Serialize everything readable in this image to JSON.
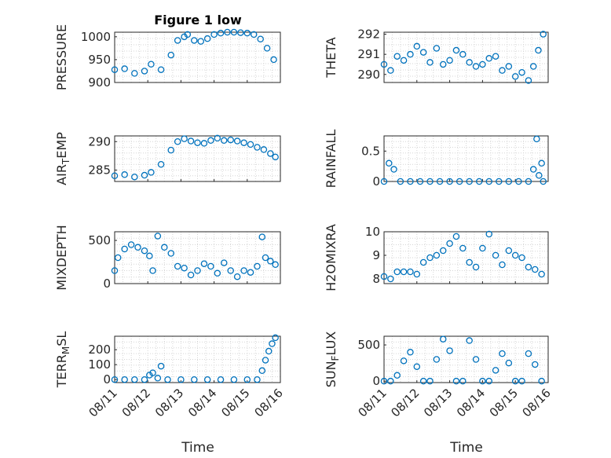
{
  "figure": {
    "title": "Figure 1 low",
    "xlabel": "Time",
    "marker_color": "#0072BD"
  },
  "chart_data": [
    {
      "type": "scatter",
      "ylabel": "PRESSURE",
      "ylim": [
        900,
        1010
      ],
      "yticks": [
        "900",
        "950",
        "1000"
      ],
      "yticks_v": [
        900,
        950,
        1000
      ],
      "xlim": [
        0,
        5
      ],
      "xticks": [
        "08/11",
        "08/12",
        "08/13",
        "08/14",
        "08/15",
        "08/16"
      ],
      "show_xticks": false,
      "grid": true,
      "x": [
        0,
        0.3,
        0.6,
        0.9,
        1.1,
        1.4,
        1.7,
        1.9,
        2.1,
        2.2,
        2.4,
        2.6,
        2.8,
        3,
        3.2,
        3.4,
        3.6,
        3.8,
        4,
        4.2,
        4.4,
        4.6,
        4.8
      ],
      "y": [
        928,
        930,
        920,
        925,
        940,
        928,
        960,
        992,
        1000,
        1005,
        992,
        990,
        996,
        1005,
        1008,
        1010,
        1010,
        1009,
        1008,
        1005,
        995,
        975,
        950
      ]
    },
    {
      "type": "scatter",
      "ylabel": "THETA",
      "ylim": [
        289.6,
        292.1
      ],
      "yticks": [
        "290",
        "291",
        "292"
      ],
      "yticks_v": [
        290,
        291,
        292
      ],
      "xlim": [
        0,
        5
      ],
      "xticks": [
        "08/11",
        "08/12",
        "08/13",
        "08/14",
        "08/15",
        "08/16"
      ],
      "show_xticks": false,
      "grid": true,
      "x": [
        0,
        0.2,
        0.4,
        0.6,
        0.8,
        1,
        1.2,
        1.4,
        1.6,
        1.8,
        2,
        2.2,
        2.4,
        2.6,
        2.8,
        3,
        3.2,
        3.4,
        3.6,
        3.8,
        4,
        4.2,
        4.4,
        4.55,
        4.7,
        4.85
      ],
      "y": [
        290.5,
        290.2,
        290.9,
        290.7,
        291,
        291.4,
        291.1,
        290.6,
        291.3,
        290.5,
        290.7,
        291.2,
        291,
        290.6,
        290.4,
        290.5,
        290.8,
        290.9,
        290.2,
        290.4,
        289.9,
        290.1,
        289.7,
        290.4,
        291.2,
        292
      ]
    },
    {
      "type": "scatter",
      "ylabel": "AIR_TEMP",
      "ylim": [
        283,
        291
      ],
      "yticks": [
        "285",
        "290"
      ],
      "yticks_v": [
        285,
        290
      ],
      "xlim": [
        0,
        5
      ],
      "xticks": [
        "08/11",
        "08/12",
        "08/13",
        "08/14",
        "08/15",
        "08/16"
      ],
      "show_xticks": false,
      "grid": true,
      "x": [
        0,
        0.3,
        0.6,
        0.9,
        1.1,
        1.4,
        1.7,
        1.9,
        2.1,
        2.3,
        2.5,
        2.7,
        2.9,
        3.1,
        3.3,
        3.5,
        3.7,
        3.9,
        4.1,
        4.3,
        4.5,
        4.7,
        4.85
      ],
      "y": [
        284,
        284.2,
        283.8,
        284.1,
        284.6,
        286,
        288.5,
        290,
        290.5,
        290.1,
        289.8,
        289.7,
        290.2,
        290.6,
        290.2,
        290.3,
        290.1,
        289.8,
        289.5,
        289,
        288.6,
        287.9,
        287.3
      ]
    },
    {
      "type": "scatter",
      "ylabel": "RAINFALL",
      "ylim": [
        0,
        0.75
      ],
      "yticks": [
        "0",
        "0.5"
      ],
      "yticks_v": [
        0,
        0.5
      ],
      "xlim": [
        0,
        5
      ],
      "xticks": [
        "08/11",
        "08/12",
        "08/13",
        "08/14",
        "08/15",
        "08/16"
      ],
      "show_xticks": false,
      "grid": true,
      "x": [
        0,
        0.15,
        0.3,
        0.5,
        0.8,
        1.1,
        1.4,
        1.7,
        2,
        2.3,
        2.6,
        2.9,
        3.2,
        3.5,
        3.8,
        4.1,
        4.4,
        4.55,
        4.65,
        4.72,
        4.8,
        4.85
      ],
      "y": [
        0,
        0.3,
        0.2,
        0,
        0,
        0,
        0,
        0,
        0,
        0,
        0,
        0,
        0,
        0,
        0,
        0,
        0,
        0.2,
        0.7,
        0.1,
        0.3,
        0
      ]
    },
    {
      "type": "scatter",
      "ylabel": "MIXDEPTH",
      "ylim": [
        0,
        600
      ],
      "yticks": [
        "0",
        "500"
      ],
      "yticks_v": [
        0,
        500
      ],
      "xlim": [
        0,
        5
      ],
      "xticks": [
        "08/11",
        "08/12",
        "08/13",
        "08/14",
        "08/15",
        "08/16"
      ],
      "show_xticks": false,
      "grid": true,
      "x": [
        0,
        0.1,
        0.3,
        0.5,
        0.7,
        0.9,
        1.05,
        1.15,
        1.3,
        1.5,
        1.7,
        1.9,
        2.1,
        2.3,
        2.5,
        2.7,
        2.9,
        3.1,
        3.3,
        3.5,
        3.7,
        3.9,
        4.1,
        4.3,
        4.45,
        4.55,
        4.7,
        4.85
      ],
      "y": [
        150,
        300,
        400,
        450,
        420,
        380,
        320,
        150,
        550,
        420,
        350,
        200,
        180,
        100,
        150,
        230,
        200,
        120,
        240,
        150,
        80,
        150,
        130,
        200,
        540,
        300,
        260,
        220
      ]
    },
    {
      "type": "scatter",
      "ylabel": "H2OMIXRA",
      "ylim": [
        7.8,
        10
      ],
      "yticks": [
        "8",
        "9",
        "10"
      ],
      "yticks_v": [
        8,
        9,
        10
      ],
      "xlim": [
        0,
        5
      ],
      "xticks": [
        "08/11",
        "08/12",
        "08/13",
        "08/14",
        "08/15",
        "08/16"
      ],
      "show_xticks": false,
      "grid": true,
      "x": [
        0,
        0.2,
        0.4,
        0.6,
        0.8,
        1,
        1.2,
        1.4,
        1.6,
        1.8,
        2,
        2.2,
        2.4,
        2.6,
        2.8,
        3,
        3.2,
        3.4,
        3.6,
        3.8,
        4,
        4.2,
        4.4,
        4.6,
        4.8
      ],
      "y": [
        8.1,
        8,
        8.3,
        8.3,
        8.3,
        8.2,
        8.7,
        8.9,
        9,
        9.2,
        9.5,
        9.8,
        9.3,
        8.7,
        8.5,
        9.3,
        9.9,
        9,
        8.6,
        9.2,
        9,
        8.9,
        8.5,
        8.4,
        8.2
      ]
    },
    {
      "type": "scatter",
      "ylabel": "TERR_MSL",
      "ylim": [
        -20,
        290
      ],
      "yticks": [
        "0",
        "100",
        "200"
      ],
      "yticks_v": [
        0,
        100,
        200
      ],
      "xlim": [
        0,
        5
      ],
      "xticks": [
        "08/11",
        "08/12",
        "08/13",
        "08/14",
        "08/15",
        "08/16"
      ],
      "show_xticks": true,
      "grid": true,
      "x": [
        0,
        0.3,
        0.6,
        0.9,
        1.05,
        1.15,
        1.3,
        1.4,
        1.6,
        2,
        2.4,
        2.8,
        3.2,
        3.6,
        4,
        4.3,
        4.45,
        4.55,
        4.65,
        4.75,
        4.85
      ],
      "y": [
        0,
        0,
        0,
        0,
        30,
        45,
        10,
        90,
        0,
        0,
        0,
        0,
        0,
        0,
        0,
        0,
        60,
        130,
        190,
        240,
        280
      ]
    },
    {
      "type": "scatter",
      "ylabel": "SUN_FLUX",
      "ylim": [
        -20,
        620
      ],
      "yticks": [
        "0",
        "500"
      ],
      "yticks_v": [
        0,
        500
      ],
      "xlim": [
        0,
        5
      ],
      "xticks": [
        "08/11",
        "08/12",
        "08/13",
        "08/14",
        "08/15",
        "08/16"
      ],
      "show_xticks": true,
      "grid": true,
      "x": [
        0,
        0.2,
        0.4,
        0.6,
        0.8,
        1,
        1.2,
        1.4,
        1.6,
        1.8,
        2,
        2.2,
        2.4,
        2.6,
        2.8,
        3,
        3.2,
        3.4,
        3.6,
        3.8,
        4,
        4.2,
        4.4,
        4.6,
        4.8
      ],
      "y": [
        0,
        0,
        80,
        280,
        400,
        200,
        0,
        0,
        300,
        580,
        420,
        0,
        0,
        560,
        300,
        0,
        0,
        150,
        380,
        250,
        0,
        0,
        380,
        230,
        0
      ]
    }
  ]
}
